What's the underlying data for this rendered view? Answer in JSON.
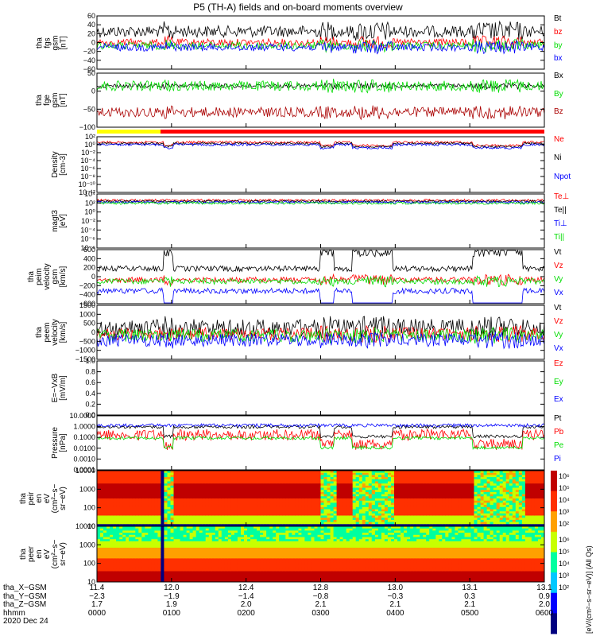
{
  "title": "P5 (TH-A) fields and on-board moments overview",
  "date": "2020 Dec 24",
  "colors": {
    "black": "#000000",
    "red": "#ff0000",
    "green": "#00dd00",
    "blue": "#0000ff",
    "darkred": "#aa0000",
    "yellow": "#ffff00"
  },
  "chart_data": [
    {
      "type": "line",
      "name": "fgs-gsm",
      "ylabel": "tha\nfgs\ngsm\n[nT]",
      "ylim": [
        -60,
        60
      ],
      "ticks": [
        "60",
        "40",
        "20",
        "0",
        "−20",
        "−40",
        "−60"
      ],
      "series": [
        {
          "name": "Bt",
          "color": "black"
        },
        {
          "name": "bz",
          "color": "red"
        },
        {
          "name": "by",
          "color": "green"
        },
        {
          "name": "bx",
          "color": "blue"
        }
      ]
    },
    {
      "type": "line",
      "name": "fge-gsm",
      "ylabel": "tha\nfge\ngsm\n[nT]",
      "ylim": [
        -110,
        50
      ],
      "ticks": [
        "50",
        "0",
        "−50",
        "−100"
      ],
      "series": [
        {
          "name": "Bx",
          "color": "black"
        },
        {
          "name": "By",
          "color": "green"
        },
        {
          "name": "Bz",
          "color": "darkred"
        }
      ]
    },
    {
      "type": "line",
      "name": "density",
      "ylabel": "Density\n[cm-3]",
      "ylim": [
        1e-12,
        100
      ],
      "ticks": [
        "10²",
        "10⁰",
        "10⁻²",
        "10⁻⁴",
        "10⁻⁶",
        "10⁻⁸",
        "10⁻¹⁰",
        "10⁻¹²"
      ],
      "series": [
        {
          "name": "Ne",
          "color": "red"
        },
        {
          "name": "Ni",
          "color": "black"
        },
        {
          "name": "Npot",
          "color": "blue"
        }
      ]
    },
    {
      "type": "line",
      "name": "temperature",
      "ylabel": "magt3\n[eV]",
      "ylim": [
        1e-08,
        10000.0
      ],
      "ticks": [
        "10⁴",
        "10²",
        "10⁰",
        "10⁻²",
        "10⁻⁴",
        "10⁻⁶",
        "10⁻⁸"
      ],
      "series": [
        {
          "name": "Te⊥",
          "color": "red"
        },
        {
          "name": "Te||",
          "color": "black"
        },
        {
          "name": "Ti⊥",
          "color": "blue"
        },
        {
          "name": "Ti||",
          "color": "green"
        }
      ]
    },
    {
      "type": "line",
      "name": "peim-velocity",
      "ylabel": "tha\npeim\nvelocity\ngsm\n[km/s]",
      "ylim": [
        -600,
        600
      ],
      "ticks": [
        "600",
        "400",
        "200",
        "0",
        "−200",
        "−400",
        "−600"
      ],
      "series": [
        {
          "name": "Vt",
          "color": "black"
        },
        {
          "name": "Vz",
          "color": "red"
        },
        {
          "name": "Vy",
          "color": "green"
        },
        {
          "name": "Vx",
          "color": "blue"
        }
      ]
    },
    {
      "type": "line",
      "name": "peem-velocity",
      "ylabel": "tha\npeem\nvelocity\n[km/s]",
      "ylim": [
        -1500,
        1500
      ],
      "ticks": [
        "1500",
        "1000",
        "500",
        "0",
        "−500",
        "−1000",
        "−1500"
      ],
      "series": [
        {
          "name": "Vt",
          "color": "black"
        },
        {
          "name": "Vz",
          "color": "red"
        },
        {
          "name": "Vy",
          "color": "green"
        },
        {
          "name": "Vx",
          "color": "blue"
        }
      ]
    },
    {
      "type": "line",
      "name": "efield",
      "ylabel": "E=−VxB\n[mV/m]",
      "ylim": [
        0,
        1
      ],
      "ticks": [
        "1.0",
        "0.8",
        "0.6",
        "0.4",
        "0.2",
        "0.0"
      ],
      "series": [
        {
          "name": "Ez",
          "color": "red"
        },
        {
          "name": "Ey",
          "color": "green"
        },
        {
          "name": "Ex",
          "color": "blue"
        }
      ]
    },
    {
      "type": "line",
      "name": "pressure",
      "ylabel": "Pressure\n[nPa]",
      "ylim": [
        0.0001,
        10
      ],
      "ticks": [
        "10.0000",
        "1.0000",
        "0.1000",
        "0.0100",
        "0.0010",
        "0.0001"
      ],
      "series": [
        {
          "name": "Pt",
          "color": "black"
        },
        {
          "name": "Pb",
          "color": "red"
        },
        {
          "name": "Pe",
          "color": "green"
        },
        {
          "name": "Pi",
          "color": "blue"
        }
      ]
    },
    {
      "type": "heatmap",
      "name": "peir-eflux",
      "ylabel": "tha\npeir\nen\neV\n(cm²−s−\nsr−eV)",
      "ylim": [
        10,
        30000
      ],
      "ticks": [
        "10000",
        "1000",
        "100",
        "10"
      ]
    },
    {
      "type": "heatmap",
      "name": "peer-eflux",
      "ylabel": "tha\npeer\nen\neV\n(cm²−s−\nsr−eV)",
      "ylim": [
        10,
        30000
      ],
      "ticks": [
        "10000",
        "1000",
        "100",
        "10"
      ]
    }
  ],
  "colorbar": {
    "label": "[eV/(cm²−s−sr−eV)] (All Qs)",
    "ticks": [
      "10⁶",
      "10⁵",
      "10⁴",
      "10³",
      "10²"
    ]
  },
  "xaxis": {
    "labels": {
      "x": "tha_X−GSM",
      "y": "tha_Y−GSM",
      "z": "tha_Z−GSM",
      "time": "hhmm"
    },
    "columns": [
      {
        "x": "11.4",
        "y": "−2.3",
        "z": "1.7",
        "time": "0000"
      },
      {
        "x": "12.0",
        "y": "−1.9",
        "z": "1.9",
        "time": "0100"
      },
      {
        "x": "12.4",
        "y": "−1.4",
        "z": "2.0",
        "time": "0200"
      },
      {
        "x": "12.8",
        "y": "−0.8",
        "z": "2.1",
        "time": "0300"
      },
      {
        "x": "13.0",
        "y": "−0.3",
        "z": "2.1",
        "time": "0400"
      },
      {
        "x": "13.1",
        "y": "0.3",
        "z": "2.1",
        "time": "0500"
      },
      {
        "x": "13.1",
        "y": "0.9",
        "z": "2.0",
        "time": "0600"
      }
    ]
  }
}
